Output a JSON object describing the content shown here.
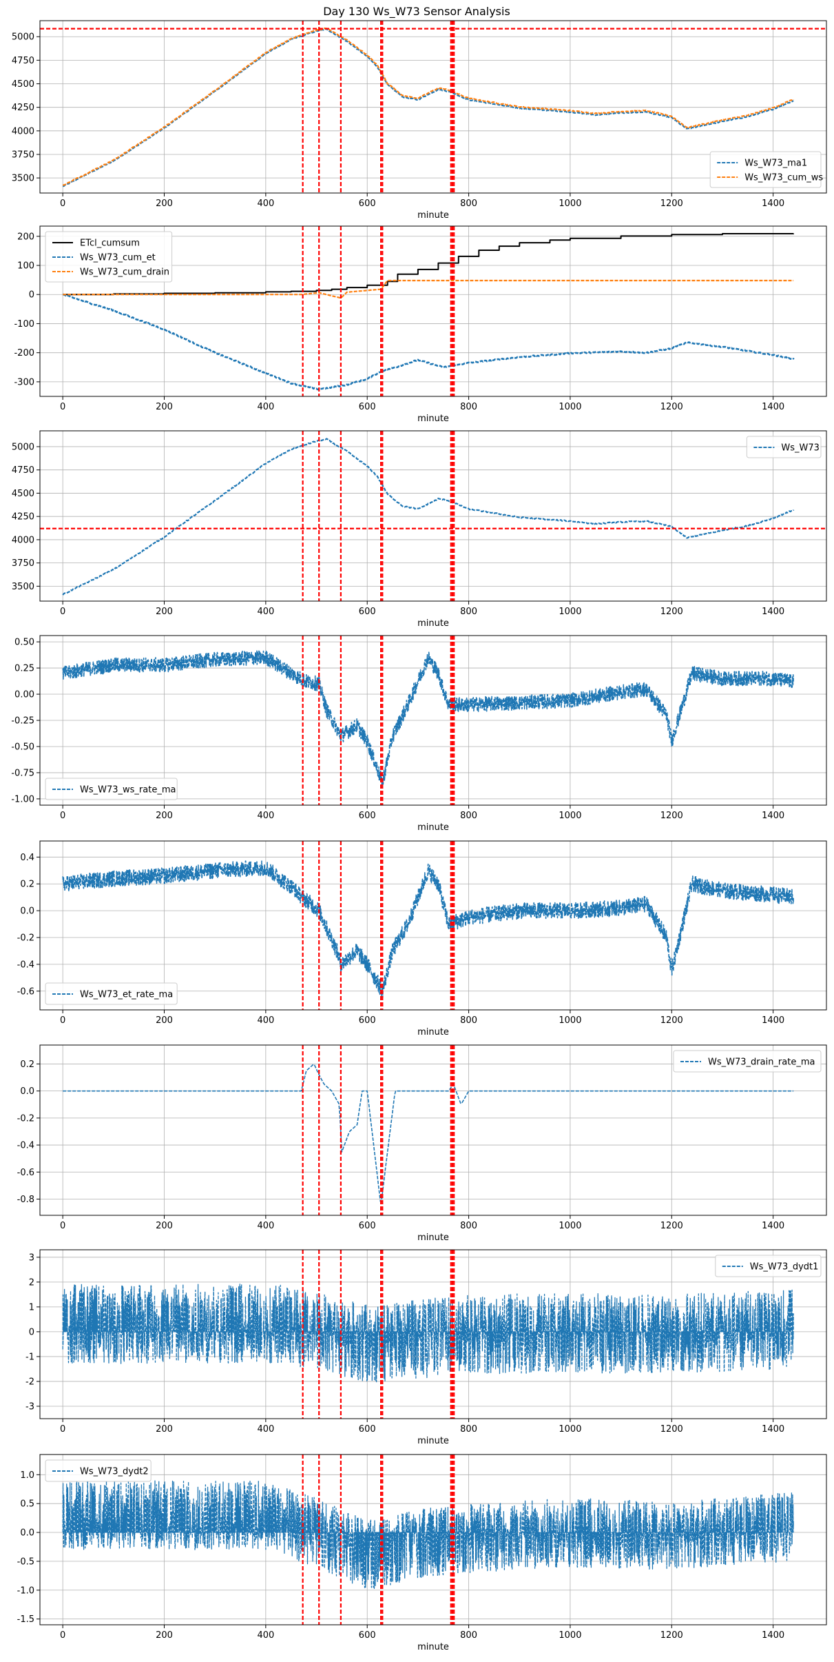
{
  "figure_title": "Day 130 Ws_W73 Sensor Analysis",
  "colors": {
    "blue": "#1f77b4",
    "orange": "#ff7f0e",
    "black": "#000000",
    "vline": "#ff0000",
    "grid": "#b0b0b0"
  },
  "event_lines_x": [
    473,
    505,
    548,
    627,
    630,
    765,
    768,
    771
  ],
  "chart_data": [
    {
      "id": "p1",
      "type": "line",
      "xlabel": "minute",
      "xlim": [
        -45,
        1505
      ],
      "ylim": [
        3340,
        5170
      ],
      "xticks": [
        0,
        200,
        400,
        600,
        800,
        1000,
        1200,
        1400
      ],
      "yticks": [
        3500,
        3750,
        4000,
        4250,
        4500,
        4750,
        5000
      ],
      "hlines": [
        5085
      ],
      "legend": {
        "loc": "lower-right",
        "entries": [
          "Ws_W73_ma1",
          "Ws_W73_cum_ws"
        ]
      },
      "series": [
        {
          "name": "Ws_W73_ma1",
          "color": "blue",
          "style": "dashed",
          "width": 2.2,
          "noise": 5,
          "x": [
            0,
            100,
            200,
            300,
            400,
            450,
            500,
            520,
            560,
            600,
            620,
            640,
            670,
            700,
            740,
            760,
            800,
            900,
            1000,
            1050,
            1100,
            1150,
            1200,
            1230,
            1300,
            1350,
            1400,
            1440
          ],
          "y": [
            3410,
            3680,
            4030,
            4420,
            4820,
            4970,
            5060,
            5080,
            4950,
            4790,
            4680,
            4490,
            4360,
            4330,
            4440,
            4420,
            4330,
            4240,
            4200,
            4170,
            4190,
            4200,
            4140,
            4020,
            4100,
            4150,
            4230,
            4320
          ]
        },
        {
          "name": "Ws_W73_cum_ws",
          "color": "orange",
          "style": "dashed",
          "width": 2.2,
          "noise": 5,
          "x": [
            0,
            100,
            200,
            300,
            400,
            450,
            500,
            520,
            560,
            600,
            620,
            640,
            670,
            700,
            740,
            760,
            800,
            900,
            1000,
            1050,
            1100,
            1150,
            1200,
            1230,
            1300,
            1350,
            1400,
            1440
          ],
          "y": [
            3420,
            3690,
            4040,
            4430,
            4830,
            4980,
            5070,
            5090,
            4965,
            4805,
            4695,
            4505,
            4375,
            4345,
            4455,
            4435,
            4345,
            4255,
            4215,
            4185,
            4205,
            4215,
            4155,
            4035,
            4115,
            4165,
            4245,
            4335
          ]
        }
      ]
    },
    {
      "id": "p2",
      "type": "line",
      "xlabel": "minute",
      "xlim": [
        -45,
        1505
      ],
      "ylim": [
        -350,
        235
      ],
      "xticks": [
        0,
        200,
        400,
        600,
        800,
        1000,
        1200,
        1400
      ],
      "yticks": [
        -300,
        -200,
        -100,
        0,
        100,
        200
      ],
      "hlines": [],
      "legend": {
        "loc": "upper-left",
        "entries": [
          "ETcl_cumsum",
          "Ws_W73_cum_et",
          "Ws_W73_cum_drain"
        ]
      },
      "series": [
        {
          "name": "ETcl_cumsum",
          "color": "black",
          "style": "solid",
          "width": 2,
          "noise": 0,
          "step": true,
          "x": [
            0,
            100,
            200,
            300,
            400,
            450,
            500,
            530,
            560,
            600,
            640,
            660,
            700,
            740,
            780,
            820,
            860,
            900,
            960,
            1000,
            1100,
            1200,
            1300,
            1440
          ],
          "y": [
            0,
            2,
            4,
            6,
            9,
            11,
            14,
            18,
            24,
            32,
            45,
            70,
            86,
            108,
            131,
            152,
            166,
            178,
            187,
            193,
            201,
            206,
            209,
            210
          ]
        },
        {
          "name": "Ws_W73_cum_et",
          "color": "blue",
          "style": "dashed",
          "width": 2.6,
          "noise": 2,
          "x": [
            0,
            100,
            200,
            300,
            400,
            450,
            500,
            520,
            560,
            600,
            630,
            660,
            700,
            750,
            800,
            900,
            1000,
            1100,
            1150,
            1200,
            1230,
            1300,
            1400,
            1440
          ],
          "y": [
            0,
            -55,
            -120,
            -200,
            -270,
            -305,
            -325,
            -322,
            -310,
            -290,
            -262,
            -248,
            -225,
            -250,
            -235,
            -215,
            -202,
            -196,
            -200,
            -185,
            -165,
            -180,
            -208,
            -222
          ]
        },
        {
          "name": "Ws_W73_cum_drain",
          "color": "orange",
          "style": "dashed",
          "width": 2.2,
          "noise": 0,
          "x": [
            0,
            470,
            505,
            548,
            560,
            600,
            627,
            640,
            760,
            800,
            1440
          ],
          "y": [
            0,
            0,
            6,
            -12,
            8,
            14,
            18,
            48,
            48,
            48,
            48
          ]
        }
      ]
    },
    {
      "id": "p3",
      "type": "line",
      "xlabel": "minute",
      "xlim": [
        -45,
        1505
      ],
      "ylim": [
        3340,
        5170
      ],
      "xticks": [
        0,
        200,
        400,
        600,
        800,
        1000,
        1200,
        1400
      ],
      "yticks": [
        3500,
        3750,
        4000,
        4250,
        4500,
        4750,
        5000
      ],
      "hlines": [
        4120
      ],
      "legend": {
        "loc": "upper-right",
        "entries": [
          "Ws_W73"
        ]
      },
      "series": [
        {
          "name": "Ws_W73",
          "color": "blue",
          "style": "dashed",
          "width": 2.2,
          "noise": 6,
          "x": [
            0,
            100,
            200,
            300,
            400,
            450,
            500,
            520,
            560,
            600,
            620,
            640,
            670,
            700,
            740,
            760,
            800,
            900,
            1000,
            1050,
            1100,
            1150,
            1200,
            1230,
            1300,
            1350,
            1400,
            1440
          ],
          "y": [
            3410,
            3680,
            4030,
            4420,
            4820,
            4970,
            5060,
            5080,
            4950,
            4790,
            4680,
            4490,
            4360,
            4330,
            4440,
            4420,
            4330,
            4240,
            4200,
            4170,
            4190,
            4200,
            4140,
            4020,
            4100,
            4150,
            4230,
            4320
          ]
        }
      ]
    },
    {
      "id": "p4",
      "type": "line",
      "xlabel": "minute",
      "xlim": [
        -45,
        1505
      ],
      "ylim": [
        -1.06,
        0.56
      ],
      "xticks": [
        0,
        200,
        400,
        600,
        800,
        1000,
        1200,
        1400
      ],
      "yticks": [
        -1.0,
        -0.75,
        -0.5,
        -0.25,
        0.0,
        0.25,
        0.5
      ],
      "hlines": [],
      "legend": {
        "loc": "lower-left",
        "entries": [
          "Ws_W73_ws_rate_ma"
        ]
      },
      "series": [
        {
          "name": "Ws_W73_ws_rate_ma",
          "color": "blue",
          "style": "dashed",
          "width": 1.6,
          "noise": 0.07,
          "dense": 2,
          "x": [
            0,
            100,
            200,
            300,
            400,
            450,
            480,
            505,
            520,
            548,
            580,
            600,
            630,
            650,
            680,
            720,
            740,
            760,
            800,
            900,
            1000,
            1100,
            1150,
            1190,
            1200,
            1240,
            1300,
            1400,
            1440
          ],
          "y": [
            0.2,
            0.28,
            0.28,
            0.33,
            0.35,
            0.2,
            0.12,
            0.1,
            -0.15,
            -0.4,
            -0.3,
            -0.45,
            -0.85,
            -0.4,
            -0.1,
            0.35,
            0.2,
            -0.1,
            -0.1,
            -0.08,
            -0.06,
            0.02,
            0.05,
            -0.2,
            -0.45,
            0.2,
            0.15,
            0.15,
            0.12
          ]
        }
      ]
    },
    {
      "id": "p5",
      "type": "line",
      "xlabel": "minute",
      "xlim": [
        -45,
        1505
      ],
      "ylim": [
        -0.74,
        0.52
      ],
      "xticks": [
        0,
        200,
        400,
        600,
        800,
        1000,
        1200,
        1400
      ],
      "yticks": [
        -0.6,
        -0.4,
        -0.2,
        0.0,
        0.2,
        0.4
      ],
      "hlines": [],
      "legend": {
        "loc": "lower-left",
        "entries": [
          "Ws_W73_et_rate_ma"
        ]
      },
      "series": [
        {
          "name": "Ws_W73_et_rate_ma",
          "color": "blue",
          "style": "dashed",
          "width": 1.6,
          "noise": 0.06,
          "dense": 2,
          "x": [
            0,
            100,
            200,
            300,
            400,
            450,
            473,
            505,
            540,
            548,
            580,
            600,
            630,
            650,
            680,
            720,
            740,
            760,
            800,
            900,
            1000,
            1100,
            1150,
            1190,
            1200,
            1240,
            1300,
            1400,
            1440
          ],
          "y": [
            0.2,
            0.24,
            0.26,
            0.3,
            0.32,
            0.18,
            0.1,
            0.0,
            -0.3,
            -0.4,
            -0.3,
            -0.4,
            -0.6,
            -0.3,
            -0.1,
            0.3,
            0.2,
            -0.1,
            -0.05,
            0.0,
            0.0,
            0.02,
            0.05,
            -0.2,
            -0.45,
            0.2,
            0.15,
            0.12,
            0.1
          ]
        }
      ]
    },
    {
      "id": "p6",
      "type": "line",
      "xlabel": "minute",
      "xlim": [
        -45,
        1505
      ],
      "ylim": [
        -0.92,
        0.34
      ],
      "xticks": [
        0,
        200,
        400,
        600,
        800,
        1000,
        1200,
        1400
      ],
      "yticks": [
        -0.8,
        -0.6,
        -0.4,
        -0.2,
        0.0,
        0.2
      ],
      "hlines": [],
      "legend": {
        "loc": "upper-right",
        "entries": [
          "Ws_W73_drain_rate_ma"
        ]
      },
      "series": [
        {
          "name": "Ws_W73_drain_rate_ma",
          "color": "blue",
          "style": "dashed",
          "width": 1.6,
          "noise": 0.0,
          "dense": 0,
          "x": [
            0,
            470,
            480,
            495,
            505,
            515,
            530,
            545,
            550,
            565,
            580,
            590,
            600,
            627,
            635,
            645,
            655,
            660,
            760,
            770,
            785,
            800,
            1440
          ],
          "y": [
            0,
            0,
            0.15,
            0.2,
            0.12,
            0.05,
            0.0,
            -0.1,
            -0.45,
            -0.3,
            -0.25,
            0.0,
            0.0,
            -0.85,
            -0.6,
            -0.3,
            0.0,
            0.0,
            0.0,
            0.05,
            -0.1,
            0.0,
            0.0
          ]
        }
      ]
    },
    {
      "id": "p7",
      "type": "line",
      "xlabel": "minute",
      "xlim": [
        -45,
        1505
      ],
      "ylim": [
        -3.5,
        3.3
      ],
      "xticks": [
        0,
        200,
        400,
        600,
        800,
        1000,
        1200,
        1400
      ],
      "yticks": [
        -3,
        -2,
        -1,
        0,
        1,
        2,
        3
      ],
      "hlines": [],
      "legend": {
        "loc": "upper-right",
        "entries": [
          "Ws_W73_dydt1"
        ]
      },
      "series": [
        {
          "name": "Ws_W73_dydt1",
          "color": "blue",
          "style": "dashed",
          "width": 1.3,
          "noise": 1.6,
          "dense": 3,
          "spiky": true,
          "x": [
            0,
            400,
            500,
            600,
            700,
            800,
            1000,
            1200,
            1440
          ],
          "y": [
            0.3,
            0.35,
            0.1,
            -0.5,
            -0.3,
            -0.1,
            -0.05,
            -0.1,
            0.1
          ]
        }
      ]
    },
    {
      "id": "p8",
      "type": "line",
      "xlabel": "minute",
      "xlim": [
        -45,
        1505
      ],
      "ylim": [
        -1.6,
        1.35
      ],
      "xticks": [
        0,
        200,
        400,
        600,
        800,
        1000,
        1200,
        1400
      ],
      "yticks": [
        -1.5,
        -1.0,
        -0.5,
        0.0,
        0.5,
        1.0
      ],
      "hlines": [],
      "legend": {
        "loc": "upper-left",
        "entries": [
          "Ws_W73_dydt2"
        ]
      },
      "series": [
        {
          "name": "Ws_W73_dydt2",
          "color": "blue",
          "style": "dashed",
          "width": 1.3,
          "noise": 0.6,
          "dense": 3,
          "spiky": true,
          "x": [
            0,
            400,
            500,
            600,
            700,
            800,
            1000,
            1200,
            1440
          ],
          "y": [
            0.3,
            0.3,
            0.0,
            -0.4,
            -0.2,
            -0.1,
            0.0,
            -0.05,
            0.1
          ]
        }
      ]
    }
  ]
}
